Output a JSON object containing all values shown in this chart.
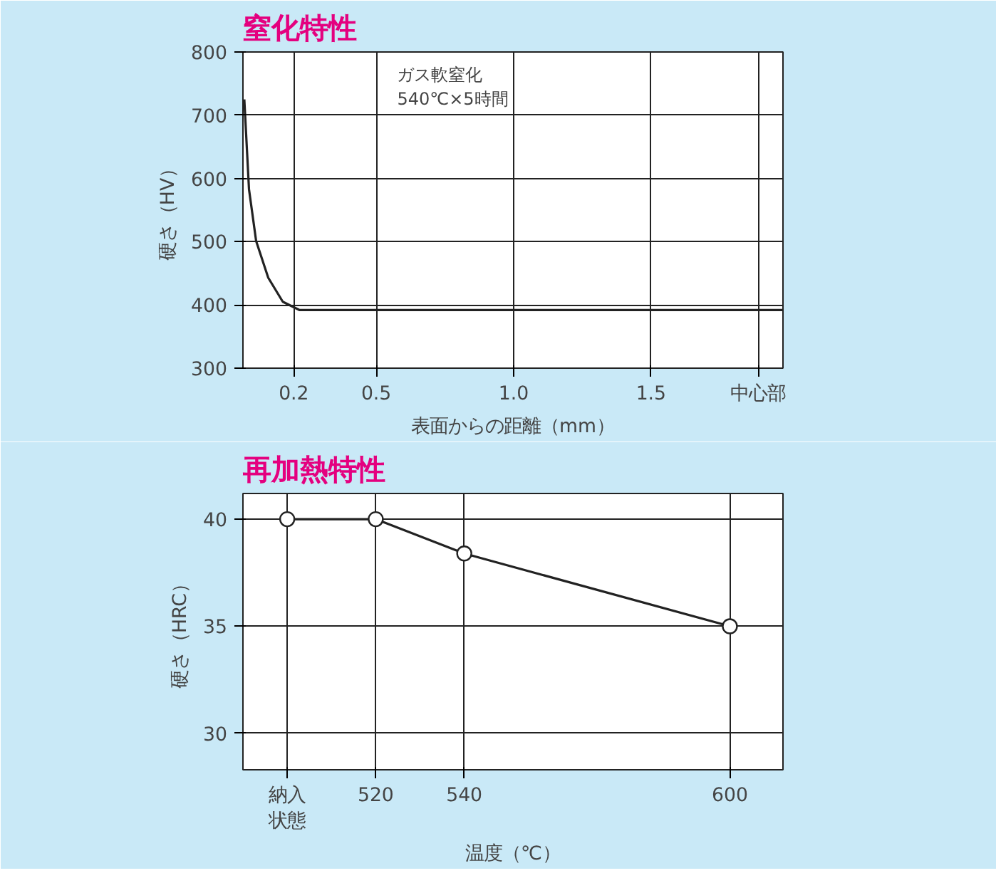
{
  "chart_data": [
    {
      "type": "line",
      "title": "窒化特性",
      "xlabel": "表面からの距離（mm）",
      "ylabel": "硬さ（HV）",
      "x": [
        0.02,
        0.037,
        0.063,
        0.107,
        0.16,
        0.22,
        1.98
      ],
      "series": [
        {
          "color": "#222222",
          "values": [
            725,
            583,
            501,
            443,
            405,
            392,
            392
          ]
        }
      ],
      "xlim": [
        0.015,
        1.98
      ],
      "ylim": [
        300,
        800
      ],
      "xticks": [
        0.2,
        0.5,
        {
          "value": 1,
          "label": "1.0"
        },
        1.5,
        {
          "value": 1.89,
          "label": "中心部"
        }
      ],
      "yticks": [
        300,
        400,
        500,
        600,
        700,
        800
      ],
      "annotations": [
        "ガス軟窒化\n540℃×5時間"
      ],
      "grid": true,
      "marker": "none",
      "line_style": "solid"
    },
    {
      "type": "line",
      "title": "再加熱特性",
      "xlabel": "温度（℃）",
      "ylabel": "硬さ（HRC）",
      "x": [
        500,
        520,
        540,
        600
      ],
      "series": [
        {
          "color": "#222222",
          "values": [
            40,
            40,
            38.4,
            35
          ]
        }
      ],
      "xlim": [
        490,
        612
      ],
      "ylim": [
        28.3,
        41.2
      ],
      "xticks": [
        {
          "value": 500,
          "label": "納入状態"
        },
        520,
        540,
        600
      ],
      "yticks": [
        30,
        35,
        40
      ],
      "grid": true,
      "marker": "circle",
      "line_style": "solid"
    }
  ]
}
